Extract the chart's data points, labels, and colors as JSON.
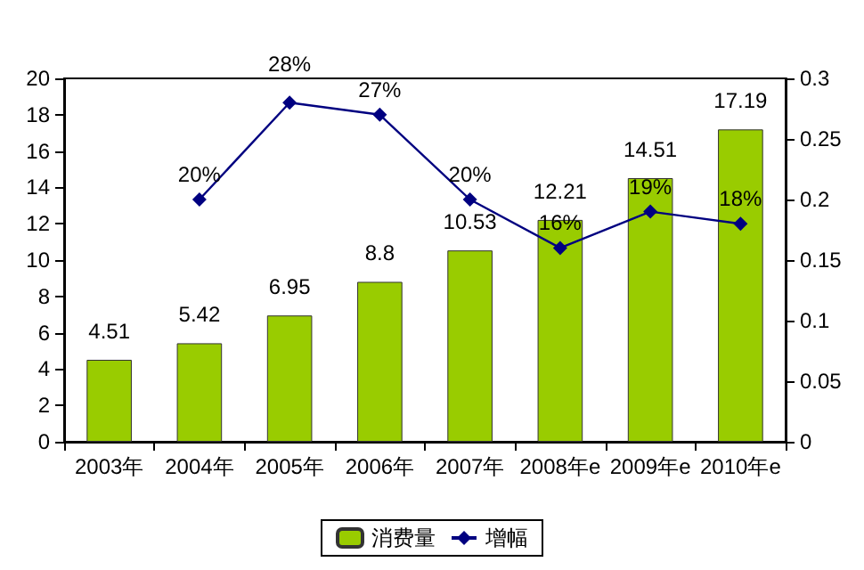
{
  "chart_data": {
    "type": "bar",
    "categories": [
      "2003年",
      "2004年",
      "2005年",
      "2006年",
      "2007年",
      "2008年e",
      "2009年e",
      "2010年e"
    ],
    "series": [
      {
        "name": "消费量",
        "type": "bar",
        "color": "#99cc00",
        "values": [
          4.51,
          5.42,
          6.95,
          8.8,
          10.53,
          12.21,
          14.51,
          17.19
        ],
        "value_labels": [
          "4.51",
          "5.42",
          "6.95",
          "8.8",
          "10.53",
          "12.21",
          "14.51",
          "17.19"
        ]
      },
      {
        "name": "增幅",
        "type": "line",
        "axis": "y2",
        "color": "#000080",
        "marker": "diamond",
        "values": [
          null,
          0.2,
          0.28,
          0.27,
          0.2,
          0.16,
          0.19,
          0.18
        ],
        "value_labels": [
          null,
          "20%",
          "28%",
          "27%",
          "20%",
          "16%",
          "19%",
          "18%"
        ]
      }
    ],
    "ylim": [
      0,
      20
    ],
    "yticks": [
      0,
      2,
      4,
      6,
      8,
      10,
      12,
      14,
      16,
      18,
      20
    ],
    "y2lim": [
      0,
      0.3
    ],
    "y2ticks": [
      0,
      0.05,
      0.1,
      0.15,
      0.2,
      0.25,
      0.3
    ],
    "grid": false,
    "legend": "bottom"
  }
}
